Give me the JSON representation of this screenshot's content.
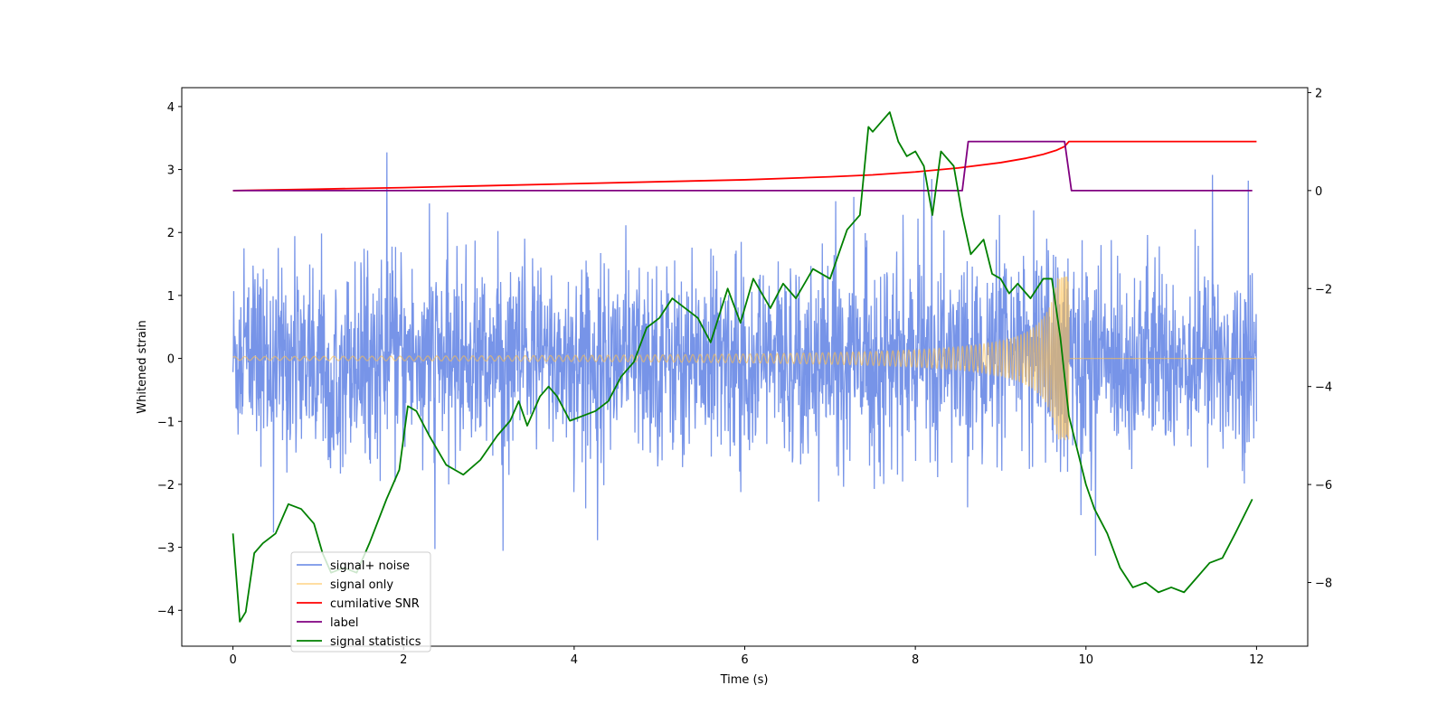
{
  "chart_data": {
    "type": "line",
    "title": "",
    "xlabel": "Time (s)",
    "ylabel": "Whitened strain",
    "y2label": "",
    "xlim": [
      -0.6,
      12.6
    ],
    "ylim": [
      -4.57,
      4.3
    ],
    "y2lim": [
      -9.3,
      2.1
    ],
    "x_ticks": [
      0,
      2,
      4,
      6,
      8,
      10,
      12
    ],
    "y_ticks": [
      -4,
      -3,
      -2,
      -1,
      0,
      1,
      2,
      3,
      4
    ],
    "y2_ticks": [
      -8,
      -6,
      -4,
      -2,
      0,
      2
    ],
    "grid": false,
    "legend_position": "lower-left",
    "noise": {
      "t_start": 0,
      "t_end": 12,
      "std": 0.75
    },
    "chirp": {
      "t_merger": 9.8,
      "t_end": 12,
      "amp_start": 0.03,
      "amp_peak": 1.3
    },
    "series": [
      {
        "name": "signal+ noise",
        "color": "#6b8be6",
        "axis": "left"
      },
      {
        "name": "signal only",
        "color": "#ffc04c",
        "axis": "left"
      },
      {
        "name": "cumilative SNR",
        "color": "#ff0000",
        "axis": "right",
        "x": [
          0,
          1,
          2,
          3,
          4,
          5,
          6,
          7,
          7.5,
          8,
          8.5,
          9,
          9.3,
          9.5,
          9.65,
          9.75,
          9.8,
          10,
          12
        ],
        "y": [
          0,
          0.03,
          0.06,
          0.1,
          0.14,
          0.18,
          0.22,
          0.28,
          0.32,
          0.38,
          0.46,
          0.57,
          0.66,
          0.74,
          0.82,
          0.9,
          1.0,
          1.0,
          1.0
        ]
      },
      {
        "name": "label",
        "color": "#800080",
        "axis": "right",
        "x": [
          0,
          8.55,
          8.62,
          9.75,
          9.83,
          11.95
        ],
        "y": [
          0,
          0,
          1,
          1,
          0,
          0
        ]
      },
      {
        "name": "signal statistics",
        "color": "#008000",
        "axis": "right",
        "x": [
          0,
          0.08,
          0.15,
          0.25,
          0.35,
          0.5,
          0.65,
          0.8,
          0.95,
          1.05,
          1.15,
          1.3,
          1.45,
          1.6,
          1.8,
          1.95,
          2.05,
          2.15,
          2.3,
          2.5,
          2.7,
          2.9,
          3.1,
          3.25,
          3.35,
          3.45,
          3.6,
          3.7,
          3.8,
          3.95,
          4.1,
          4.25,
          4.4,
          4.55,
          4.7,
          4.85,
          5.0,
          5.15,
          5.3,
          5.45,
          5.6,
          5.8,
          5.95,
          6.1,
          6.3,
          6.45,
          6.6,
          6.8,
          7.0,
          7.2,
          7.35,
          7.45,
          7.5,
          7.6,
          7.7,
          7.8,
          7.9,
          8.0,
          8.1,
          8.2,
          8.3,
          8.45,
          8.55,
          8.65,
          8.8,
          8.9,
          9.0,
          9.1,
          9.2,
          9.35,
          9.5,
          9.6,
          9.7,
          9.8,
          9.9,
          10.0,
          10.1,
          10.25,
          10.4,
          10.55,
          10.7,
          10.85,
          11.0,
          11.15,
          11.3,
          11.45,
          11.6,
          11.75,
          11.95
        ],
        "y": [
          -7.0,
          -8.8,
          -8.6,
          -7.4,
          -7.2,
          -7.0,
          -6.4,
          -6.5,
          -6.8,
          -7.4,
          -7.8,
          -7.7,
          -7.8,
          -7.2,
          -6.3,
          -5.7,
          -4.4,
          -4.5,
          -5.0,
          -5.6,
          -5.8,
          -5.5,
          -5.0,
          -4.7,
          -4.3,
          -4.8,
          -4.2,
          -4.0,
          -4.2,
          -4.7,
          -4.6,
          -4.5,
          -4.3,
          -3.8,
          -3.5,
          -2.8,
          -2.6,
          -2.2,
          -2.4,
          -2.6,
          -3.1,
          -2.0,
          -2.7,
          -1.8,
          -2.4,
          -1.9,
          -2.2,
          -1.6,
          -1.8,
          -0.8,
          -0.5,
          1.3,
          1.2,
          1.4,
          1.6,
          1.0,
          0.7,
          0.8,
          0.5,
          -0.5,
          0.8,
          0.5,
          -0.5,
          -1.3,
          -1.0,
          -1.7,
          -1.8,
          -2.1,
          -1.9,
          -2.2,
          -1.8,
          -1.8,
          -3.0,
          -4.6,
          -5.3,
          -6.0,
          -6.5,
          -7.0,
          -7.7,
          -8.1,
          -8.0,
          -8.2,
          -8.1,
          -8.2,
          -7.9,
          -7.6,
          -7.5,
          -7.0,
          -6.3
        ]
      }
    ]
  }
}
